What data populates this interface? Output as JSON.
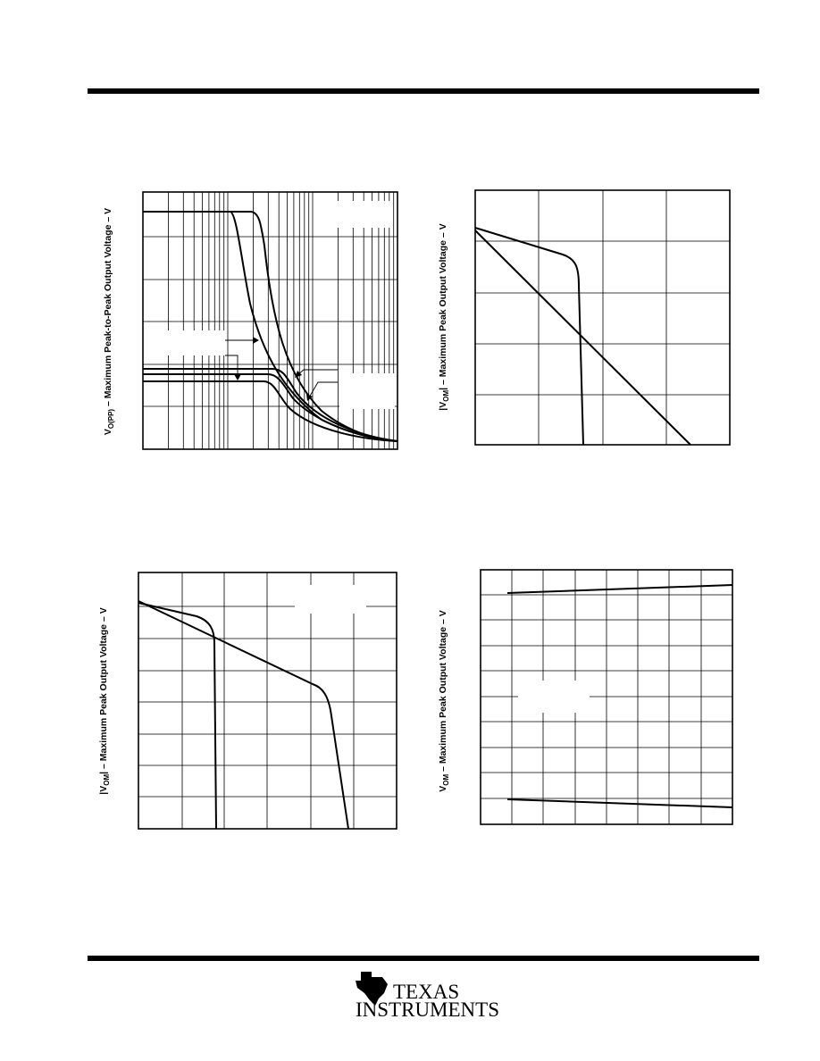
{
  "figures": [
    {
      "y_label": {
        "symbol": "V",
        "subscript": "O(PP)",
        "text": " – Maximum Peak-to-Peak Output Voltage – V"
      }
    },
    {
      "y_label": {
        "symbol": "|V",
        "subscript": "OM",
        "text": "| – Maximum Peak Output Voltage – V"
      }
    },
    {
      "y_label": {
        "symbol": "|V",
        "subscript": "OM",
        "text": "| – Maximum Peak Output Voltage – V"
      }
    },
    {
      "y_label": {
        "symbol": "V",
        "subscript": "OM",
        "text": " – Maximum Peak Output Voltage – V"
      }
    }
  ],
  "footer": {
    "logo_line1": "TEXAS",
    "logo_line2": "INSTRUMENTS"
  }
}
